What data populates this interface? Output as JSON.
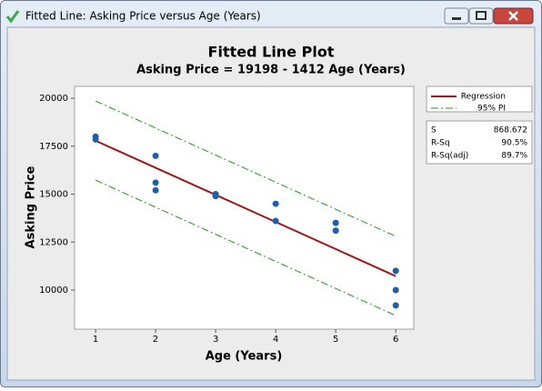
{
  "window": {
    "title": "Fitted Line: Asking Price versus Age (Years)"
  },
  "chart_data": {
    "type": "fitted-line",
    "title": "Fitted Line Plot",
    "subtitle": "Asking Price = 19198 - 1412 Age (Years)",
    "x_label": "Age (Years)",
    "y_label": "Asking Price",
    "xlim": [
      0.65,
      6.3
    ],
    "xticks": [
      1,
      2,
      3,
      4,
      5,
      6
    ],
    "ylim": [
      7960,
      20620
    ],
    "yticks": [
      10000,
      12500,
      15000,
      17500,
      20000
    ],
    "points": {
      "color": "#1f5fa8",
      "x": [
        1,
        1,
        2,
        2,
        2,
        3,
        3,
        4,
        4,
        5,
        5,
        6,
        6,
        6
      ],
      "values": [
        17850,
        18000,
        17000,
        15600,
        15200,
        15000,
        14900,
        14500,
        13600,
        13500,
        13100,
        11000,
        10000,
        9200
      ]
    },
    "series": [
      {
        "name": "Regression",
        "color": "#a01818",
        "style": "solid",
        "x": [
          1,
          6
        ],
        "values": [
          17786,
          10726
        ]
      },
      {
        "name": "95% PI",
        "color": "#1f9a1f",
        "style": "dashdot",
        "x": [
          1,
          6
        ],
        "upper": [
          19860,
          12800
        ],
        "lower": [
          15730,
          8670
        ]
      }
    ],
    "stats": [
      [
        "S",
        "868.672"
      ],
      [
        "R-Sq",
        "90.5%"
      ],
      [
        "R-Sq(adj)",
        "89.7%"
      ]
    ]
  }
}
